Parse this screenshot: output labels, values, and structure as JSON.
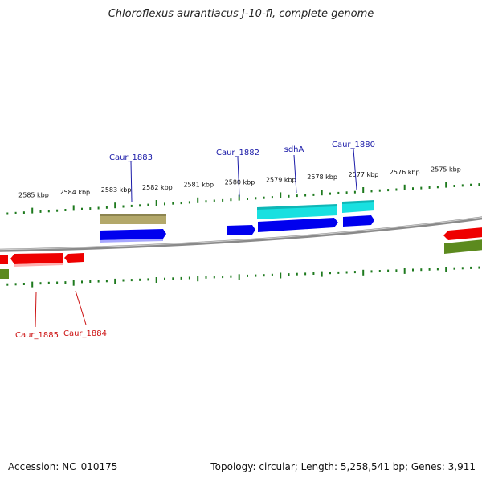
{
  "title": "Chloroflexus aurantiacus J-10-fl, complete genome",
  "footer": {
    "accession": "Accession: NC_010175",
    "summary": "Topology: circular; Length: 5,258,541 bp; Genes: 3,911"
  },
  "colors": {
    "backbone": "#8a8a8a",
    "tick": "#1e7a1e",
    "forward_gene": "#0000ee",
    "forward_label": "#1a1aa8",
    "reverse_gene": "#ee0000",
    "reverse_label": "#cc1111",
    "operon_fwd": "#b3a86a",
    "sdh": "#19e0e0",
    "olive": "#5c8a1e"
  },
  "scale": {
    "unit": "kbp",
    "labels": [
      "2585 kbp",
      "2584 kbp",
      "2583 kbp",
      "2582 kbp",
      "2581 kbp",
      "2580 kbp",
      "2579 kbp",
      "2578 kbp",
      "2577 kbp",
      "2576 kbp",
      "2575 kbp"
    ]
  },
  "genes": {
    "forward": [
      {
        "label": "Caur_1883"
      },
      {
        "label": "Caur_1882"
      },
      {
        "label": "sdhA"
      },
      {
        "label": "Caur_1880"
      }
    ],
    "reverse": [
      {
        "label": "Caur_1885"
      },
      {
        "label": "Caur_1884"
      }
    ]
  }
}
